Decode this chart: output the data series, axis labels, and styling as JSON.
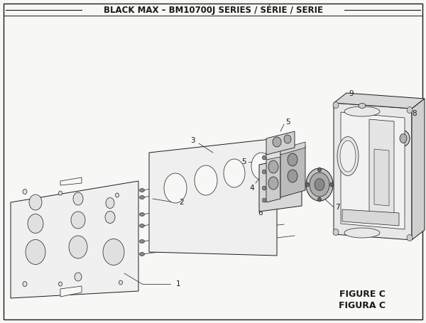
{
  "title": "BLACK MAX – BM10700J SERIES / SÉRIE / SERIE",
  "figure_label": "FIGURE C",
  "figura_label": "FIGURA C",
  "bg_color": "#f7f7f5",
  "line_color": "#1a1a1a",
  "title_fontsize": 8.5,
  "label_fontsize": 7,
  "figure_label_fontsize": 8.5
}
